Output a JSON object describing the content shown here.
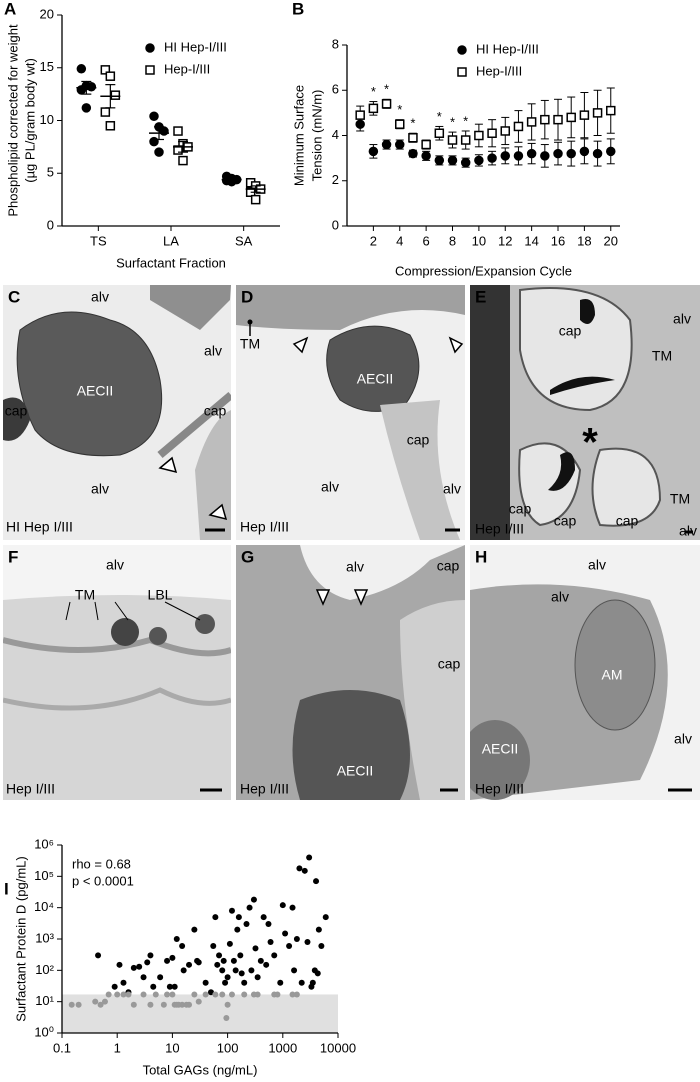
{
  "chart_data": [
    {
      "type": "strip",
      "panel": "A",
      "ylabel": [
        "Phospholipid corrected for weight",
        "(µg PL/gram body wt)"
      ],
      "xlabel": "Surfactant Fraction",
      "categories": [
        "TS",
        "LA",
        "SA"
      ],
      "ylim": [
        0,
        20
      ],
      "yticks": [
        0,
        5,
        10,
        15,
        20
      ],
      "series": [
        {
          "name": "HI Hep-I/III",
          "color": "#000000",
          "marker": "circle",
          "filled": true,
          "values": [
            [
              14.9,
              13.3,
              13.2,
              12.9,
              11.2
            ],
            [
              10.4,
              9.4,
              9.0,
              8.0,
              7.0
            ],
            [
              4.7,
              4.5,
              4.4,
              4.3,
              4.2
            ]
          ],
          "means": [
            13.1,
            8.8,
            4.4
          ],
          "sems": [
            0.6,
            0.6,
            0.1
          ]
        },
        {
          "name": "Hep-I/III",
          "color": "#000000",
          "marker": "square",
          "filled": false,
          "values": [
            [
              14.8,
              14.2,
              12.4,
              10.8,
              9.5
            ],
            [
              9.0,
              7.8,
              7.5,
              7.2,
              6.2
            ],
            [
              4.1,
              3.8,
              3.5,
              3.2,
              2.5
            ]
          ],
          "means": [
            12.3,
            7.5,
            3.5
          ],
          "sems": [
            1.1,
            0.5,
            0.3
          ]
        }
      ]
    },
    {
      "type": "errorbar",
      "panel": "B",
      "ylabel": [
        "Minimum Surface",
        "Tension (mN/m)"
      ],
      "xlabel": "Compression/Expansion Cycle",
      "x": [
        1,
        2,
        3,
        4,
        5,
        6,
        7,
        8,
        9,
        10,
        11,
        12,
        13,
        14,
        15,
        16,
        17,
        18,
        19,
        20
      ],
      "xlim": [
        0,
        20.7
      ],
      "xticks": [
        2,
        4,
        6,
        8,
        10,
        12,
        14,
        16,
        18,
        20
      ],
      "ylim": [
        0,
        8
      ],
      "yticks": [
        0,
        2,
        4,
        6,
        8
      ],
      "series": [
        {
          "name": "HI Hep-I/III",
          "color": "#000000",
          "marker": "circle",
          "filled": true,
          "values": [
            4.5,
            3.3,
            3.6,
            3.6,
            3.2,
            3.1,
            2.9,
            2.9,
            2.8,
            2.9,
            3.0,
            3.1,
            3.1,
            3.2,
            3.1,
            3.2,
            3.2,
            3.3,
            3.2,
            3.3
          ],
          "errors": [
            0.3,
            0.3,
            0.2,
            0.2,
            0.15,
            0.2,
            0.2,
            0.2,
            0.2,
            0.25,
            0.3,
            0.35,
            0.4,
            0.45,
            0.5,
            0.5,
            0.55,
            0.55,
            0.55,
            0.55
          ]
        },
        {
          "name": "Hep-I/III",
          "color": "#000000",
          "marker": "square",
          "filled": false,
          "values": [
            4.9,
            5.2,
            5.4,
            4.5,
            3.9,
            3.6,
            4.1,
            3.8,
            3.8,
            4.0,
            4.1,
            4.2,
            4.4,
            4.6,
            4.7,
            4.7,
            4.8,
            4.9,
            5.0,
            5.1
          ],
          "errors": [
            0.4,
            0.3,
            0.2,
            0.2,
            0.2,
            0.2,
            0.3,
            0.35,
            0.4,
            0.5,
            0.6,
            0.6,
            0.7,
            0.8,
            0.85,
            0.9,
            0.9,
            1.0,
            1.0,
            1.0
          ]
        }
      ],
      "annotations": [
        {
          "x": 2,
          "text": "*"
        },
        {
          "x": 3,
          "text": "*"
        },
        {
          "x": 4,
          "text": "*"
        },
        {
          "x": 5,
          "text": "*"
        },
        {
          "x": 7,
          "text": "*"
        },
        {
          "x": 8,
          "text": "*"
        },
        {
          "x": 9,
          "text": "*"
        }
      ]
    },
    {
      "type": "scatter",
      "panel": "I",
      "ylabel": "Surfactant Protein D (pg/mL)",
      "xlabel": "Total GAGs (ng/mL)",
      "stats": [
        "rho = 0.68",
        "p < 0.0001"
      ],
      "xscale": "log",
      "yscale": "log",
      "xlim": [
        0.1,
        10000
      ],
      "xticks": [
        0.1,
        1,
        10,
        100,
        1000,
        10000
      ],
      "ylim": [
        1,
        1000000
      ],
      "yticks": [
        {
          "value": 1,
          "label": "10⁰"
        },
        {
          "value": 10,
          "label": "10¹"
        },
        {
          "value": 100,
          "label": "10²"
        },
        {
          "value": 1000,
          "label": "10³"
        },
        {
          "value": 10000,
          "label": "10⁴"
        },
        {
          "value": 100000,
          "label": "10⁵"
        },
        {
          "value": 1000000,
          "label": "10⁶"
        }
      ],
      "shade_below": 17,
      "shade_color": "#e0e0e0",
      "series": [
        {
          "color": "#000000",
          "x": [
            0.45,
            0.9,
            1.1,
            1.3,
            1.6,
            2,
            2.5,
            3,
            3.5,
            4,
            4.5,
            6,
            8,
            9,
            10,
            11,
            12,
            15,
            16,
            20,
            25,
            28,
            30,
            40,
            50,
            55,
            60,
            65,
            70,
            80,
            85,
            90,
            100,
            110,
            120,
            130,
            140,
            150,
            160,
            170,
            180,
            200,
            220,
            250,
            270,
            300,
            320,
            350,
            400,
            450,
            500,
            550,
            600,
            700,
            900,
            1000,
            1100,
            1300,
            1500,
            1600,
            1800,
            2000,
            2200,
            2500,
            2800,
            3000,
            3300,
            3500,
            3800,
            4000,
            4300,
            4500,
            5000,
            6000
          ],
          "values": [
            300,
            30,
            150,
            40,
            20,
            120,
            130,
            60,
            180,
            300,
            30,
            60,
            200,
            30,
            250,
            30,
            1000,
            600,
            100,
            150,
            2000,
            200,
            180,
            40,
            20,
            600,
            5000,
            150,
            300,
            100,
            200,
            40,
            60,
            700,
            8000,
            200,
            100,
            2000,
            5000,
            300,
            80,
            40,
            3000,
            10000,
            100,
            18000,
            500,
            60,
            200,
            5000,
            150,
            3000,
            800,
            300,
            40,
            12000,
            1500,
            600,
            10000,
            100,
            1000,
            180000,
            40,
            150000,
            800,
            400000,
            30,
            40,
            100,
            70000,
            80,
            2000,
            600,
            5000
          ]
        },
        {
          "color": "#999999",
          "x": [
            0.15,
            0.2,
            0.4,
            0.5,
            0.6,
            0.7,
            1,
            1.3,
            1.6,
            2,
            3,
            4,
            5,
            7,
            8,
            10,
            11,
            12,
            13,
            15,
            18,
            20,
            25,
            30,
            40,
            60,
            80,
            95,
            100,
            120,
            200,
            300,
            350,
            700,
            800,
            1500,
            1800
          ],
          "values": [
            8,
            8,
            10,
            8,
            10,
            17,
            17,
            17,
            17,
            8,
            17,
            8,
            17,
            8,
            17,
            17,
            8,
            8,
            8,
            8,
            8,
            8,
            17,
            10,
            17,
            17,
            17,
            3,
            8,
            17,
            17,
            17,
            17,
            17,
            17,
            17,
            17
          ]
        }
      ]
    }
  ],
  "micrographs": [
    {
      "panel": "C",
      "labels": [
        "alv",
        "alv",
        "cap",
        "AECII",
        "cap",
        "alv",
        "HI Hep I/III"
      ]
    },
    {
      "panel": "D",
      "labels": [
        "TM",
        "AECII",
        "cap",
        "alv",
        "alv",
        "Hep I/III"
      ]
    },
    {
      "panel": "E",
      "labels": [
        "alv",
        "cap",
        "TM",
        "*",
        "TM",
        "cap",
        "cap",
        "cap",
        "alv",
        "Hep I/III"
      ]
    },
    {
      "panel": "F",
      "labels": [
        "alv",
        "TM",
        "LBL",
        "Hep I/III"
      ]
    },
    {
      "panel": "G",
      "labels": [
        "alv",
        "cap",
        "cap",
        "AECII",
        "Hep I/III"
      ]
    },
    {
      "panel": "H",
      "labels": [
        "alv",
        "alv",
        "AM",
        "AECII",
        "alv",
        "Hep I/III"
      ]
    }
  ]
}
